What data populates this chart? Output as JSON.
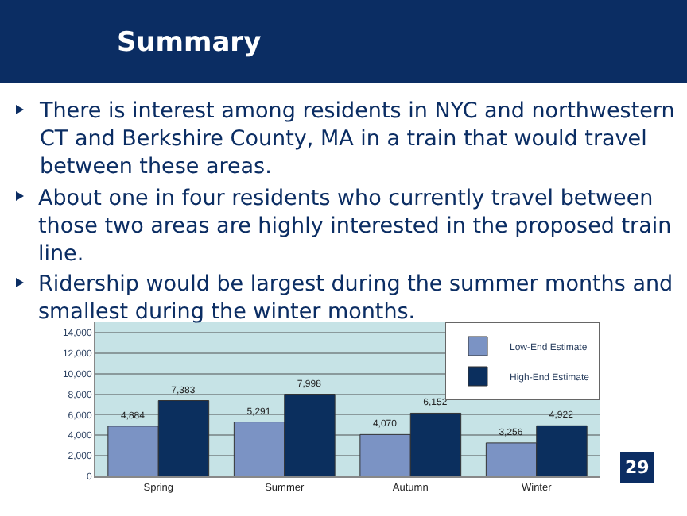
{
  "chart_data": {
    "type": "bar",
    "title": "Summary",
    "annotations": [
      "There is interest among residents in NYC and northwestern CT and Berkshire County, MA in a train that would travel between these areas.",
      "About one in four residents who currently travel between those two areas are highly interested in the proposed train line.",
      "Ridership would be largest during the summer months and smallest during the winter months.",
      "29"
    ],
    "categories": [
      "Spring",
      "Summer",
      "Autumn",
      "Winter"
    ],
    "series": [
      {
        "name": "Low-End Estimate",
        "color": "#7b93c4",
        "values": [
          4884,
          5291,
          4070,
          3256
        ],
        "value_labels": [
          "4,884",
          "5,291",
          "4,070",
          "3,256"
        ]
      },
      {
        "name": "High-End Estimate",
        "color": "#0b2f5e",
        "values": [
          7383,
          7998,
          6152,
          4922
        ],
        "value_labels": [
          "7,383",
          "7,998",
          "6,152",
          "4,922"
        ]
      }
    ],
    "ylim": [
      0,
      15000
    ],
    "yticks": [
      {
        "value": 0,
        "label": "0"
      },
      {
        "value": 2000,
        "label": "2,000"
      },
      {
        "value": 4000,
        "label": "4,000"
      },
      {
        "value": 6000,
        "label": "6,000"
      },
      {
        "value": 8000,
        "label": "8,000"
      },
      {
        "value": 10000,
        "label": "10,000"
      },
      {
        "value": 12000,
        "label": "12,000"
      },
      {
        "value": 14000,
        "label": "14,000"
      }
    ],
    "grid": "y",
    "legend": "top right"
  }
}
